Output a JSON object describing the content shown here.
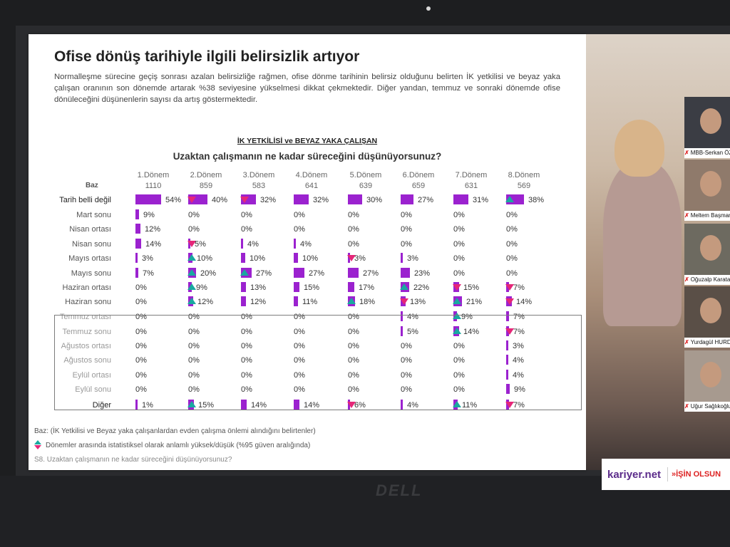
{
  "slide": {
    "title": "Ofise dönüş tarihiyle ilgili belirsizlik artıyor",
    "intro": "Normalleşme sürecine geçiş sonrası azalan belirsizliğe rağmen, ofise dönme tarihinin belirsiz olduğunu belirten İK yetkilisi ve beyaz yaka çalışan oranının son dönemde artarak %38 seviyesine yükselmesi dikkat çekmektedir. Diğer yandan, temmuz ve sonraki dönemde ofise dönüleceğini düşünenlerin sayısı da artış göstermektedir.",
    "subtitle": "İK YETKİLİSİ ve BEYAZ YAKA ÇALIŞAN",
    "question": "Uzaktan çalışmanın ne kadar süreceğini düşünüyorsunuz?",
    "baz_label": "Baz",
    "periods": [
      "1.Dönem",
      "2.Dönem",
      "3.Dönem",
      "4.Dönem",
      "5.Dönem",
      "6.Dönem",
      "7.Dönem",
      "8.Dönem"
    ],
    "bases": [
      "1110",
      "859",
      "583",
      "641",
      "639",
      "659",
      "631",
      "569"
    ],
    "rows": [
      {
        "label": "Tarih belli değil",
        "values": [
          54,
          40,
          32,
          32,
          30,
          27,
          31,
          38
        ],
        "sig": [
          "",
          "down",
          "down",
          "",
          "",
          "",
          "",
          "up"
        ]
      },
      {
        "label": "Mart sonu",
        "values": [
          9,
          0,
          0,
          0,
          0,
          0,
          0,
          0
        ],
        "sig": [
          "",
          "",
          "",
          "",
          "",
          "",
          "",
          ""
        ]
      },
      {
        "label": "Nisan ortası",
        "values": [
          12,
          0,
          0,
          0,
          0,
          0,
          0,
          0
        ],
        "sig": [
          "",
          "",
          "",
          "",
          "",
          "",
          "",
          ""
        ]
      },
      {
        "label": "Nisan sonu",
        "values": [
          14,
          5,
          4,
          4,
          0,
          0,
          0,
          0
        ],
        "sig": [
          "",
          "down",
          "",
          "",
          "",
          "",
          "",
          ""
        ]
      },
      {
        "label": "Mayıs ortası",
        "values": [
          3,
          10,
          10,
          10,
          3,
          3,
          0,
          0
        ],
        "sig": [
          "",
          "up",
          "",
          "",
          "down",
          "",
          "",
          ""
        ]
      },
      {
        "label": "Mayıs sonu",
        "values": [
          7,
          20,
          27,
          27,
          27,
          23,
          0,
          0
        ],
        "sig": [
          "",
          "up",
          "up",
          "",
          "",
          "",
          "",
          ""
        ]
      },
      {
        "label": "Haziran ortası",
        "values": [
          0,
          9,
          13,
          15,
          17,
          22,
          15,
          7
        ],
        "sig": [
          "",
          "up",
          "",
          "",
          "",
          "up",
          "down",
          "down"
        ]
      },
      {
        "label": "Haziran sonu",
        "values": [
          0,
          12,
          12,
          11,
          18,
          13,
          21,
          14
        ],
        "sig": [
          "",
          "up",
          "",
          "",
          "up",
          "down",
          "up",
          "down"
        ]
      },
      {
        "label": "Temmuz ortası",
        "values": [
          0,
          0,
          0,
          0,
          0,
          4,
          9,
          7
        ],
        "sig": [
          "",
          "",
          "",
          "",
          "",
          "",
          "up",
          ""
        ]
      },
      {
        "label": "Temmuz sonu",
        "values": [
          0,
          0,
          0,
          0,
          0,
          5,
          14,
          7
        ],
        "sig": [
          "",
          "",
          "",
          "",
          "",
          "",
          "up",
          "down"
        ]
      },
      {
        "label": "Ağustos ortası",
        "values": [
          0,
          0,
          0,
          0,
          0,
          0,
          0,
          3
        ],
        "sig": [
          "",
          "",
          "",
          "",
          "",
          "",
          "",
          ""
        ]
      },
      {
        "label": "Ağustos sonu",
        "values": [
          0,
          0,
          0,
          0,
          0,
          0,
          0,
          4
        ],
        "sig": [
          "",
          "",
          "",
          "",
          "",
          "",
          "",
          ""
        ]
      },
      {
        "label": "Eylül ortası",
        "values": [
          0,
          0,
          0,
          0,
          0,
          0,
          0,
          4
        ],
        "sig": [
          "",
          "",
          "",
          "",
          "",
          "",
          "",
          ""
        ]
      },
      {
        "label": "Eylül sonu",
        "values": [
          0,
          0,
          0,
          0,
          0,
          0,
          0,
          9
        ],
        "sig": [
          "",
          "",
          "",
          "",
          "",
          "",
          "",
          ""
        ]
      },
      {
        "label": "Diğer",
        "values": [
          1,
          15,
          14,
          14,
          6,
          4,
          11,
          7
        ],
        "sig": [
          "",
          "up",
          "",
          "",
          "down",
          "",
          "up",
          "down"
        ]
      }
    ],
    "footnote_base": "Baz: (İK Yetkilisi ve Beyaz yaka çalışanlardan evden çalışma önlemi alındığını belirtenler)",
    "footnote_sig": "Dönemler arasında istatistiksel olarak anlamlı yüksek/düşük (%95 güven aralığında)",
    "footnote_q": "S8. Uzaktan çalışmanın ne kadar süreceğini düşünüyorsunuz?"
  },
  "participants": [
    "MBB-Serkan ÖZADA",
    "Meltem Başman -",
    "Oğuzalp Karataş-Kar",
    "Yurdagül HURDA - A",
    "Uğur Sağlıkoğlu"
  ],
  "logos": {
    "kariyer": "kariyer.net",
    "slogan": "»İŞİN OLSUN"
  },
  "laptop_brand": "DELL",
  "colors": {
    "bar": "#9b22cf",
    "sig_down": "#e52778",
    "sig_up": "#1aa9a0"
  }
}
